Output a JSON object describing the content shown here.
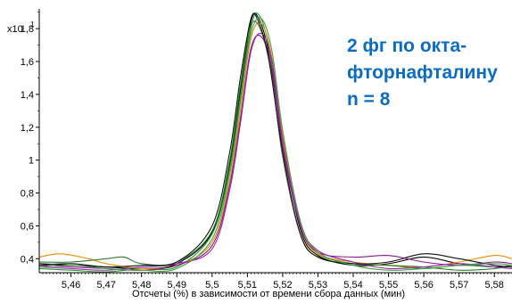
{
  "chart_data": {
    "type": "line",
    "title": "",
    "xlabel": "Отсчеты (%) в зависимости от времени сбора данных (мин)",
    "ylabel": "",
    "y_multiplier_label": "x10",
    "y_multiplier_exponent": "1",
    "xlim": [
      5.451,
      5.585
    ],
    "ylim": [
      0.315,
      1.92
    ],
    "x_ticks": [
      "5,46",
      "5,47",
      "5,48",
      "5,49",
      "5,5",
      "5,51",
      "5,52",
      "5,53",
      "5,54",
      "5,55",
      "5,56",
      "5,57",
      "5,58"
    ],
    "y_ticks": [
      "0,4",
      "0,6",
      "0,8",
      "1",
      "1,2",
      "1,4",
      "1,6",
      "1,8"
    ],
    "grid": false,
    "annotation_lines": [
      "2 фг по окта-",
      "фторнафталину",
      "n = 8"
    ],
    "series": [
      {
        "color": "#000000",
        "values": [
          [
            5.451,
            0.37
          ],
          [
            5.46,
            0.36
          ],
          [
            5.47,
            0.35
          ],
          [
            5.48,
            0.34
          ],
          [
            5.49,
            0.37
          ],
          [
            5.5,
            0.56
          ],
          [
            5.505,
            0.98
          ],
          [
            5.508,
            1.42
          ],
          [
            5.511,
            1.84
          ],
          [
            5.513,
            1.87
          ],
          [
            5.516,
            1.66
          ],
          [
            5.52,
            1.12
          ],
          [
            5.525,
            0.58
          ],
          [
            5.53,
            0.42
          ],
          [
            5.54,
            0.36
          ],
          [
            5.55,
            0.37
          ],
          [
            5.56,
            0.41
          ],
          [
            5.57,
            0.37
          ],
          [
            5.58,
            0.35
          ],
          [
            5.585,
            0.36
          ]
        ]
      },
      {
        "color": "#1f9a2e",
        "values": [
          [
            5.451,
            0.34
          ],
          [
            5.46,
            0.33
          ],
          [
            5.47,
            0.32
          ],
          [
            5.48,
            0.34
          ],
          [
            5.49,
            0.35
          ],
          [
            5.5,
            0.55
          ],
          [
            5.505,
            0.95
          ],
          [
            5.508,
            1.38
          ],
          [
            5.511,
            1.8
          ],
          [
            5.513,
            1.89
          ],
          [
            5.516,
            1.7
          ],
          [
            5.52,
            1.14
          ],
          [
            5.525,
            0.6
          ],
          [
            5.53,
            0.43
          ],
          [
            5.54,
            0.37
          ],
          [
            5.55,
            0.36
          ],
          [
            5.56,
            0.34
          ],
          [
            5.57,
            0.36
          ],
          [
            5.58,
            0.35
          ],
          [
            5.585,
            0.34
          ]
        ]
      },
      {
        "color": "#f08a00",
        "values": [
          [
            5.451,
            0.41
          ],
          [
            5.457,
            0.43
          ],
          [
            5.465,
            0.4
          ],
          [
            5.47,
            0.37
          ],
          [
            5.48,
            0.34
          ],
          [
            5.49,
            0.36
          ],
          [
            5.5,
            0.5
          ],
          [
            5.505,
            0.88
          ],
          [
            5.508,
            1.3
          ],
          [
            5.511,
            1.74
          ],
          [
            5.514,
            1.83
          ],
          [
            5.517,
            1.62
          ],
          [
            5.52,
            1.15
          ],
          [
            5.525,
            0.6
          ],
          [
            5.53,
            0.43
          ],
          [
            5.54,
            0.38
          ],
          [
            5.55,
            0.36
          ],
          [
            5.56,
            0.35
          ],
          [
            5.57,
            0.38
          ],
          [
            5.58,
            0.42
          ],
          [
            5.585,
            0.4
          ]
        ]
      },
      {
        "color": "#8a1a8a",
        "values": [
          [
            5.451,
            0.36
          ],
          [
            5.46,
            0.35
          ],
          [
            5.47,
            0.34
          ],
          [
            5.48,
            0.33
          ],
          [
            5.49,
            0.36
          ],
          [
            5.5,
            0.48
          ],
          [
            5.505,
            0.85
          ],
          [
            5.508,
            1.25
          ],
          [
            5.511,
            1.68
          ],
          [
            5.514,
            1.75
          ],
          [
            5.517,
            1.55
          ],
          [
            5.52,
            1.08
          ],
          [
            5.525,
            0.6
          ],
          [
            5.53,
            0.44
          ],
          [
            5.54,
            0.41
          ],
          [
            5.55,
            0.42
          ],
          [
            5.56,
            0.38
          ],
          [
            5.57,
            0.36
          ],
          [
            5.58,
            0.38
          ],
          [
            5.585,
            0.37
          ]
        ]
      },
      {
        "color": "#2e7d32",
        "values": [
          [
            5.451,
            0.38
          ],
          [
            5.46,
            0.38
          ],
          [
            5.47,
            0.4
          ],
          [
            5.475,
            0.41
          ],
          [
            5.48,
            0.37
          ],
          [
            5.49,
            0.38
          ],
          [
            5.5,
            0.57
          ],
          [
            5.505,
            1.0
          ],
          [
            5.508,
            1.45
          ],
          [
            5.511,
            1.82
          ],
          [
            5.514,
            1.78
          ],
          [
            5.517,
            1.5
          ],
          [
            5.52,
            1.02
          ],
          [
            5.525,
            0.55
          ],
          [
            5.53,
            0.41
          ],
          [
            5.54,
            0.37
          ],
          [
            5.55,
            0.36
          ],
          [
            5.56,
            0.35
          ],
          [
            5.57,
            0.33
          ],
          [
            5.58,
            0.34
          ],
          [
            5.585,
            0.36
          ]
        ]
      },
      {
        "color": "#9c27b0",
        "values": [
          [
            5.451,
            0.35
          ],
          [
            5.46,
            0.34
          ],
          [
            5.47,
            0.33
          ],
          [
            5.48,
            0.35
          ],
          [
            5.49,
            0.37
          ],
          [
            5.5,
            0.46
          ],
          [
            5.505,
            0.82
          ],
          [
            5.508,
            1.22
          ],
          [
            5.511,
            1.66
          ],
          [
            5.514,
            1.77
          ],
          [
            5.517,
            1.6
          ],
          [
            5.52,
            1.12
          ],
          [
            5.525,
            0.62
          ],
          [
            5.53,
            0.45
          ],
          [
            5.54,
            0.38
          ],
          [
            5.55,
            0.34
          ],
          [
            5.56,
            0.35
          ],
          [
            5.57,
            0.37
          ],
          [
            5.58,
            0.35
          ],
          [
            5.585,
            0.34
          ]
        ]
      },
      {
        "color": "#111111",
        "values": [
          [
            5.451,
            0.36
          ],
          [
            5.46,
            0.37
          ],
          [
            5.47,
            0.35
          ],
          [
            5.48,
            0.36
          ],
          [
            5.49,
            0.38
          ],
          [
            5.5,
            0.6
          ],
          [
            5.505,
            1.05
          ],
          [
            5.508,
            1.5
          ],
          [
            5.511,
            1.86
          ],
          [
            5.513,
            1.85
          ],
          [
            5.516,
            1.62
          ],
          [
            5.52,
            1.05
          ],
          [
            5.525,
            0.55
          ],
          [
            5.53,
            0.41
          ],
          [
            5.54,
            0.37
          ],
          [
            5.55,
            0.38
          ],
          [
            5.56,
            0.43
          ],
          [
            5.57,
            0.4
          ],
          [
            5.58,
            0.36
          ],
          [
            5.585,
            0.35
          ]
        ]
      },
      {
        "color": "#43a047",
        "values": [
          [
            5.451,
            0.35
          ],
          [
            5.46,
            0.36
          ],
          [
            5.47,
            0.34
          ],
          [
            5.48,
            0.33
          ],
          [
            5.49,
            0.34
          ],
          [
            5.5,
            0.52
          ],
          [
            5.505,
            0.92
          ],
          [
            5.508,
            1.35
          ],
          [
            5.511,
            1.77
          ],
          [
            5.514,
            1.86
          ],
          [
            5.517,
            1.66
          ],
          [
            5.52,
            1.18
          ],
          [
            5.525,
            0.63
          ],
          [
            5.53,
            0.44
          ],
          [
            5.54,
            0.36
          ],
          [
            5.55,
            0.33
          ],
          [
            5.56,
            0.34
          ],
          [
            5.57,
            0.36
          ],
          [
            5.58,
            0.37
          ],
          [
            5.585,
            0.36
          ]
        ]
      }
    ]
  }
}
